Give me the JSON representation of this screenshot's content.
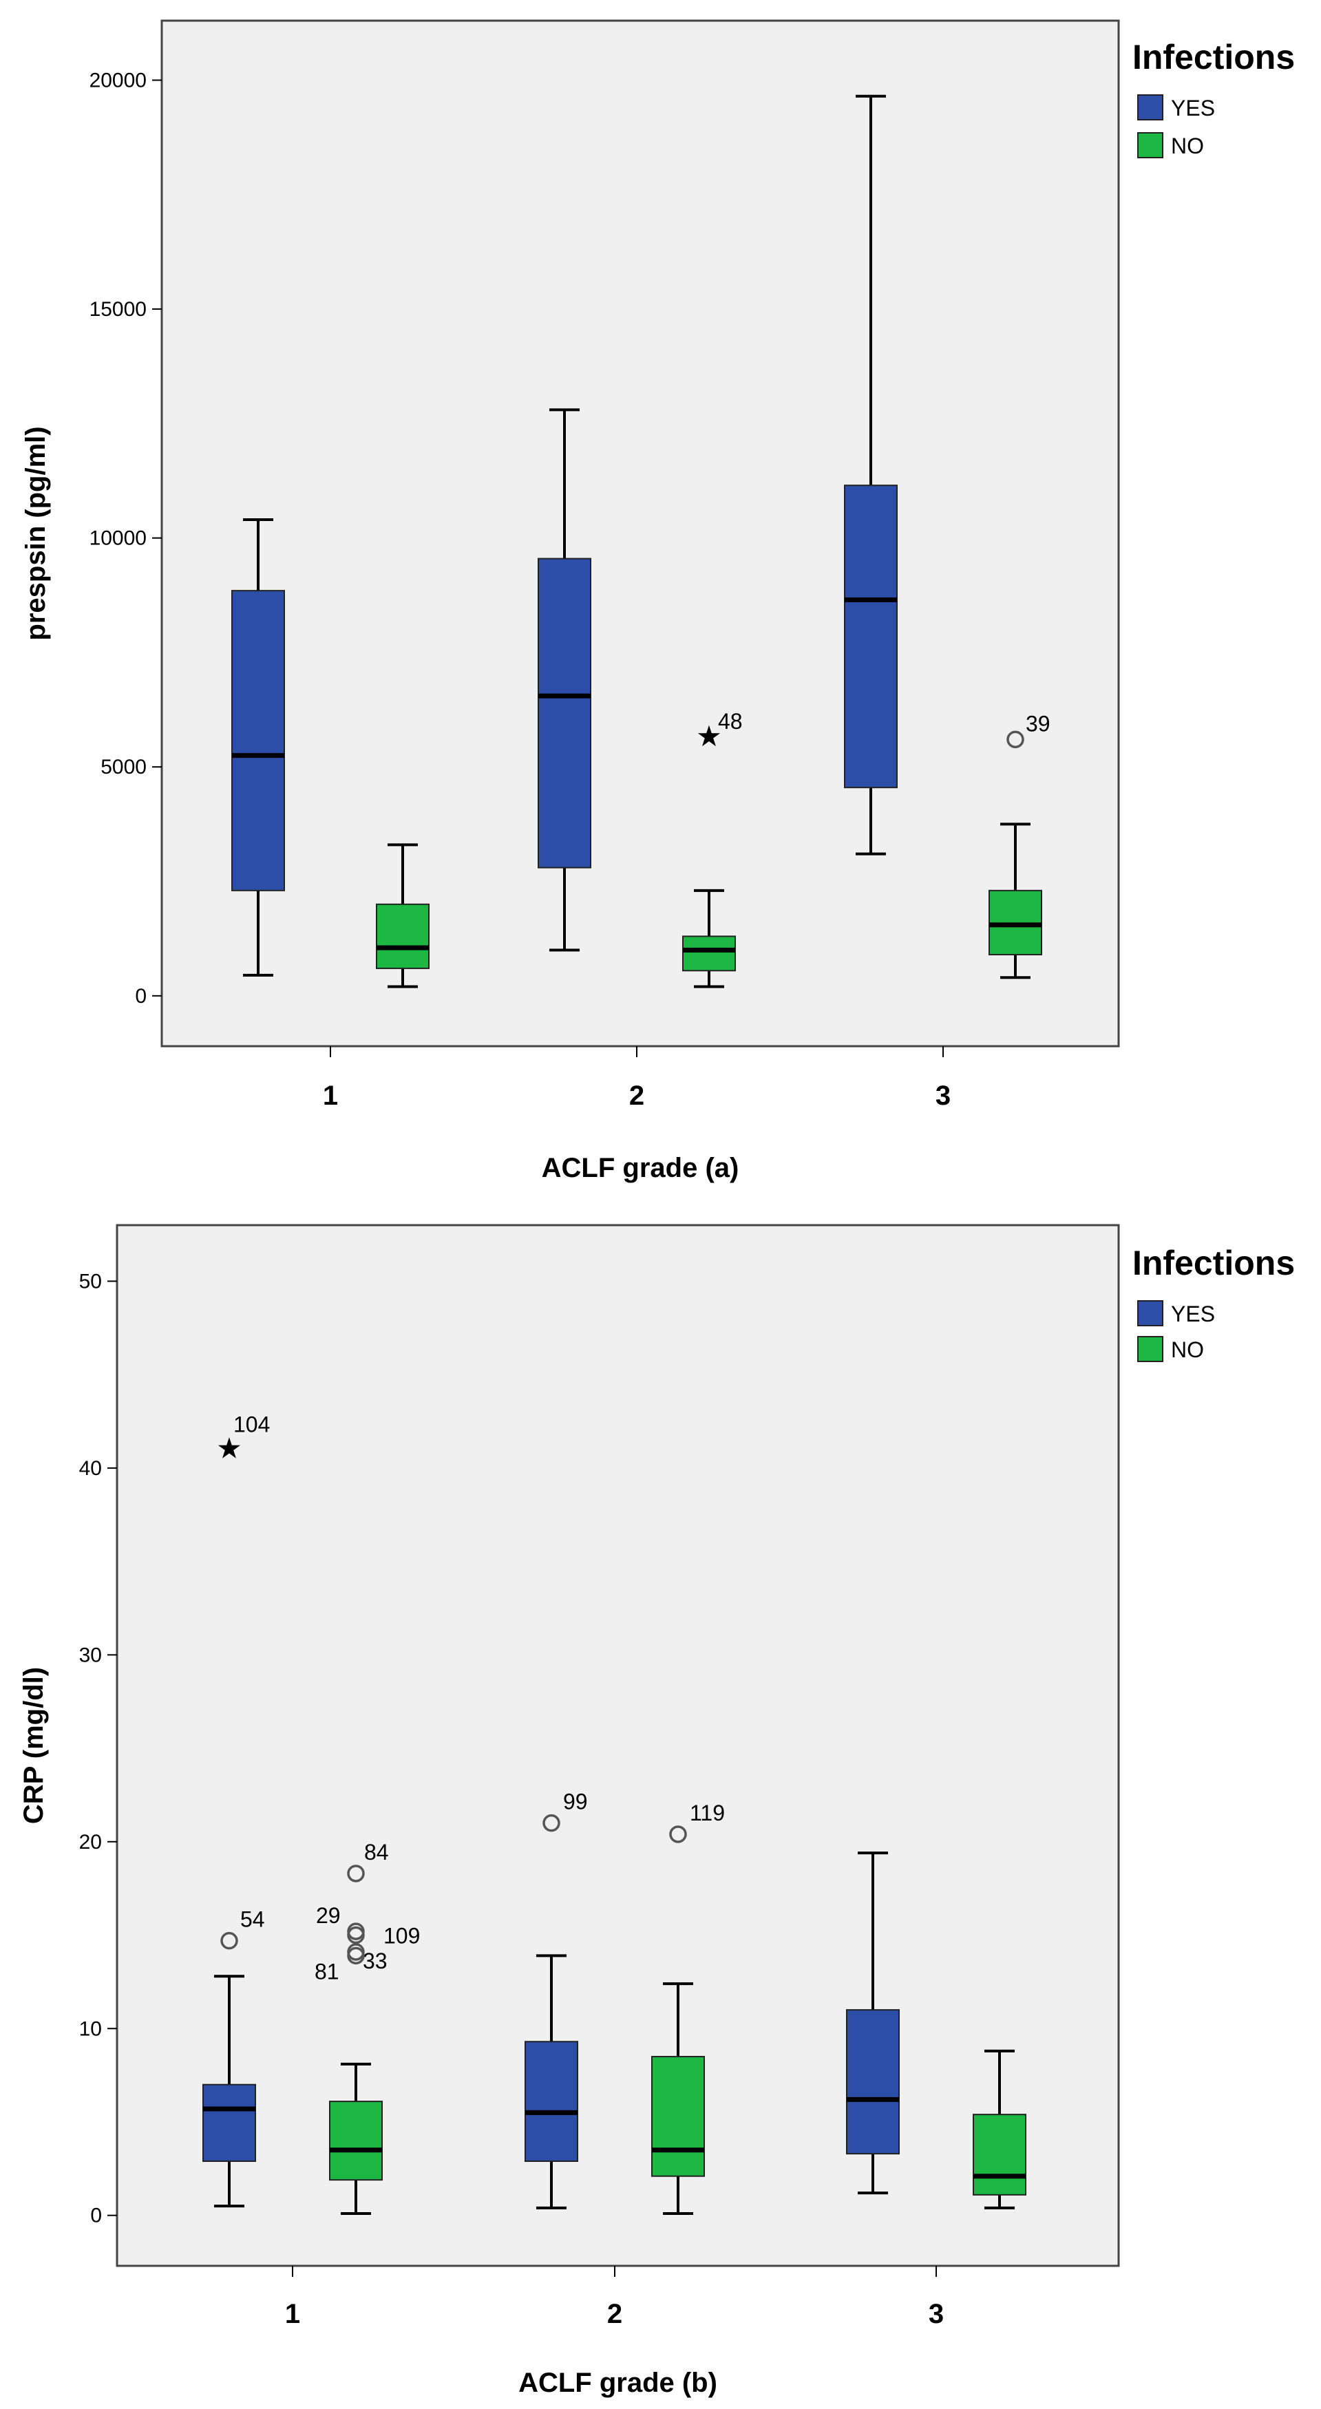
{
  "colors": {
    "yes": "#2c4ea8",
    "no": "#1db843",
    "plot_bg": "#f0f0f0",
    "frame": "#444444"
  },
  "chart_data": [
    {
      "type": "boxplot",
      "xlabel": "ACLF grade (a)",
      "ylabel": "prespsin (pg/ml)",
      "categories": [
        "1",
        "2",
        "3"
      ],
      "ylim": [
        -1100,
        21300
      ],
      "yticks": [
        0,
        5000,
        10000,
        15000,
        20000
      ],
      "legend": {
        "title": "Infections",
        "position": "right",
        "entries": [
          {
            "key": "yes",
            "label": "YES",
            "color": "#2c4ea8"
          },
          {
            "key": "no",
            "label": "NO",
            "color": "#1db843"
          }
        ]
      },
      "series": [
        {
          "name": "YES",
          "key": "yes",
          "boxes": [
            {
              "category": "1",
              "min": 450,
              "q1": 2300,
              "median": 5250,
              "q3": 8850,
              "max": 10400,
              "outliers": []
            },
            {
              "category": "2",
              "min": 1000,
              "q1": 2800,
              "median": 6550,
              "q3": 9550,
              "max": 12800,
              "outliers": []
            },
            {
              "category": "3",
              "min": 3100,
              "q1": 4550,
              "median": 8650,
              "q3": 11150,
              "max": 19650,
              "outliers": []
            }
          ]
        },
        {
          "name": "NO",
          "key": "no",
          "boxes": [
            {
              "category": "1",
              "min": 200,
              "q1": 600,
              "median": 1050,
              "q3": 2000,
              "max": 3300,
              "outliers": []
            },
            {
              "category": "2",
              "min": 200,
              "q1": 550,
              "median": 1000,
              "q3": 1300,
              "max": 2300,
              "outliers": [
                {
                  "value": 5650,
                  "symbol": "star",
                  "label": "48"
                }
              ]
            },
            {
              "category": "3",
              "min": 400,
              "q1": 900,
              "median": 1550,
              "q3": 2300,
              "max": 3750,
              "outliers": [
                {
                  "value": 5600,
                  "symbol": "circle",
                  "label": "39"
                }
              ]
            }
          ]
        }
      ]
    },
    {
      "type": "boxplot",
      "xlabel": "ACLF grade (b)",
      "ylabel": "CRP (mg/dl)",
      "categories": [
        "1",
        "2",
        "3"
      ],
      "ylim": [
        -2.7,
        53
      ],
      "yticks": [
        0,
        10,
        20,
        30,
        40,
        50
      ],
      "legend": {
        "title": "Infections",
        "position": "right",
        "entries": [
          {
            "key": "yes",
            "label": "YES",
            "color": "#2c4ea8"
          },
          {
            "key": "no",
            "label": "NO",
            "color": "#1db843"
          }
        ]
      },
      "series": [
        {
          "name": "YES",
          "key": "yes",
          "boxes": [
            {
              "category": "1",
              "min": 0.5,
              "q1": 2.9,
              "median": 5.7,
              "q3": 7.0,
              "max": 12.8,
              "outliers": [
                {
                  "value": 41.0,
                  "symbol": "star",
                  "label": "104"
                },
                {
                  "value": 14.7,
                  "symbol": "circle",
                  "label": "54"
                }
              ]
            },
            {
              "category": "2",
              "min": 0.4,
              "q1": 2.9,
              "median": 5.5,
              "q3": 9.3,
              "max": 13.9,
              "outliers": [
                {
                  "value": 21.0,
                  "symbol": "circle",
                  "label": "99"
                }
              ]
            },
            {
              "category": "3",
              "min": 1.2,
              "q1": 3.3,
              "median": 6.2,
              "q3": 11.0,
              "max": 19.4,
              "outliers": []
            }
          ]
        },
        {
          "name": "NO",
          "key": "no",
          "boxes": [
            {
              "category": "1",
              "min": 0.1,
              "q1": 1.9,
              "median": 3.5,
              "q3": 6.1,
              "max": 8.1,
              "outliers": [
                {
                  "value": 18.3,
                  "symbol": "circle",
                  "label": "84"
                },
                {
                  "value": 15.2,
                  "symbol": "circle",
                  "label": "29"
                },
                {
                  "value": 15.0,
                  "symbol": "circle",
                  "label": "109"
                },
                {
                  "value": 14.1,
                  "symbol": "circle",
                  "label": "33"
                },
                {
                  "value": 13.9,
                  "symbol": "circle",
                  "label": "81"
                }
              ]
            },
            {
              "category": "2",
              "min": 0.1,
              "q1": 2.1,
              "median": 3.5,
              "q3": 8.5,
              "max": 12.4,
              "outliers": [
                {
                  "value": 20.4,
                  "symbol": "circle",
                  "label": "119"
                }
              ]
            },
            {
              "category": "3",
              "min": 0.4,
              "q1": 1.1,
              "median": 2.1,
              "q3": 5.4,
              "max": 8.8,
              "outliers": []
            }
          ]
        }
      ]
    }
  ]
}
